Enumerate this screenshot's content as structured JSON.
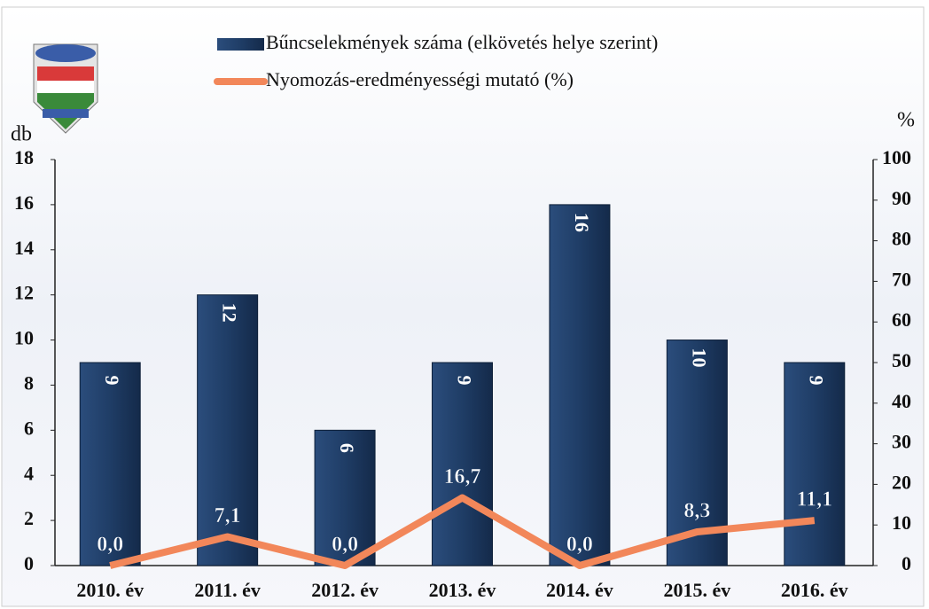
{
  "chart_data": {
    "type": "bar",
    "y_label": "db",
    "y2_label": "%",
    "categories": [
      "2010. év",
      "2011. év",
      "2012. év",
      "2013. év",
      "2014. év",
      "2015. év",
      "2016. év"
    ],
    "series": [
      {
        "name": "Bűncselekmények száma (elkövetés helye szerint)",
        "type": "bar",
        "color": "#1f3d66",
        "values": [
          9,
          12,
          6,
          9,
          16,
          10,
          9
        ]
      },
      {
        "name": "Nyomozás-eredményességi mutató (%)",
        "type": "line",
        "axis": "y2",
        "color": "#f2875a",
        "values": [
          0,
          7.1,
          0,
          16.7,
          0,
          8.3,
          11.1
        ],
        "value_labels": [
          "0,0",
          "7,1",
          "0,0",
          "16,7",
          "0,0",
          "8,3",
          "11,1"
        ]
      }
    ],
    "ylim": [
      0,
      18
    ],
    "yticks": [
      0,
      2,
      4,
      6,
      8,
      10,
      12,
      14,
      16,
      18
    ],
    "y2lim": [
      0,
      100
    ],
    "y2ticks": [
      0,
      10,
      20,
      30,
      40,
      50,
      60,
      70,
      80,
      90,
      100
    ]
  }
}
